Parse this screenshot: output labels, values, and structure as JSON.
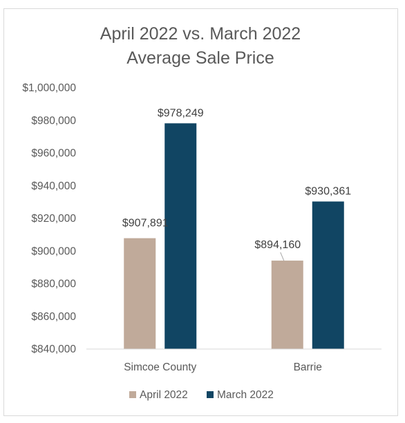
{
  "chart_data": {
    "type": "bar",
    "title": [
      "April 2022 vs. March 2022",
      "Average Sale Price"
    ],
    "categories": [
      "Simcoe County",
      "Barrie"
    ],
    "series": [
      {
        "name": "April 2022",
        "color": "#c0aa9a",
        "values": [
          907891,
          894160
        ],
        "labels": [
          "$907,891",
          "$894,160"
        ]
      },
      {
        "name": "March 2022",
        "color": "#114563",
        "values": [
          978249,
          930361
        ],
        "labels": [
          "$978,249",
          "$930,361"
        ]
      }
    ],
    "ylim": [
      840000,
      1000000
    ],
    "yticks": [
      840000,
      860000,
      880000,
      900000,
      920000,
      940000,
      960000,
      980000,
      1000000
    ],
    "ytick_labels": [
      "$840,000",
      "$860,000",
      "$880,000",
      "$900,000",
      "$920,000",
      "$940,000",
      "$960,000",
      "$980,000",
      "$1,000,000"
    ],
    "grid": false,
    "legend_position": "bottom",
    "axis_color": "#d9d9d9"
  }
}
